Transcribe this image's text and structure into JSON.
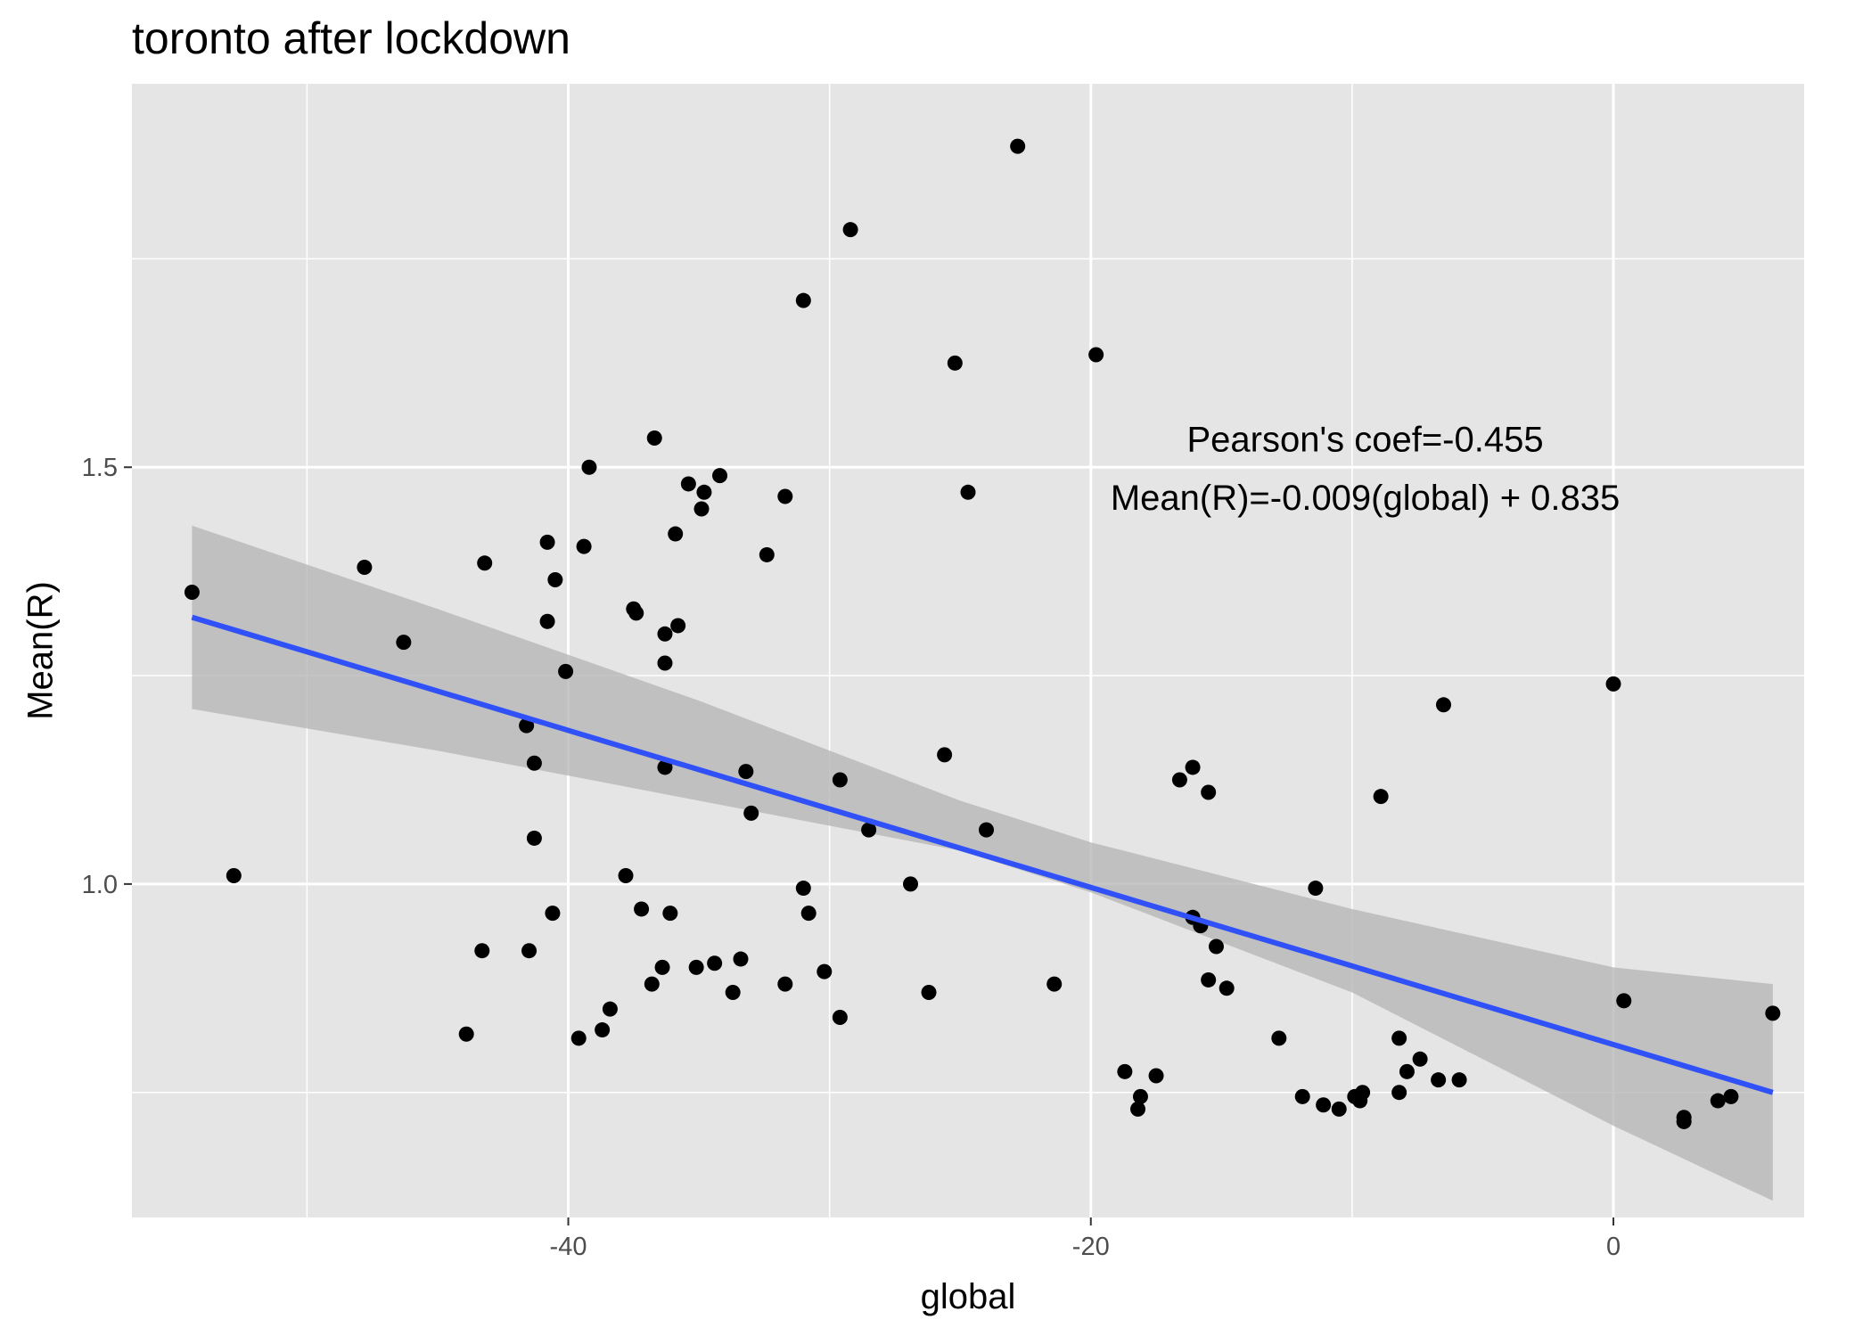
{
  "title": "toronto after lockdown",
  "annotations": [
    {
      "text": "Pearson's coef=-0.455",
      "x": -9.5,
      "y": 1.53
    },
    {
      "text": "Mean(R)=-0.009(global) + 0.835",
      "x": -9.5,
      "y": 1.46
    }
  ],
  "chart_data": {
    "type": "scatter",
    "xlabel": "global",
    "ylabel": "Mean(R)",
    "xlim": [
      -56.7,
      7.3
    ],
    "ylim": [
      0.6,
      1.96
    ],
    "x_ticks": [
      {
        "value": -40,
        "label": "-40"
      },
      {
        "value": -20,
        "label": "-20"
      },
      {
        "value": 0,
        "label": "0"
      }
    ],
    "y_ticks": [
      {
        "value": 1.0,
        "label": "1.0"
      },
      {
        "value": 1.5,
        "label": "1.5"
      }
    ],
    "x_gridlines_minor": [
      -50,
      -30,
      -10
    ],
    "y_gridlines_minor": [
      0.75,
      1.25,
      1.75
    ],
    "grid": true,
    "colors": {
      "panel": "#e5e5e5",
      "grid": "#ffffff",
      "points": "#000000",
      "fit_line": "#3050f8",
      "ribbon": "#b3b3b3"
    },
    "fit": {
      "slope": -0.009,
      "intercept": 0.835,
      "x_range": [
        -54.4,
        6.1
      ]
    },
    "ribbon": [
      {
        "x": -54.4,
        "lo": 1.21,
        "hi": 1.43
      },
      {
        "x": -45,
        "lo": 1.16,
        "hi": 1.33
      },
      {
        "x": -35,
        "lo": 1.1,
        "hi": 1.22
      },
      {
        "x": -25,
        "lo": 1.04,
        "hi": 1.1
      },
      {
        "x": -20,
        "lo": 0.99,
        "hi": 1.05
      },
      {
        "x": -10,
        "lo": 0.87,
        "hi": 0.97
      },
      {
        "x": 0,
        "lo": 0.71,
        "hi": 0.9
      },
      {
        "x": 6.1,
        "lo": 0.62,
        "hi": 0.88
      }
    ],
    "series": [
      {
        "points": [
          {
            "x": -54.4,
            "y": 1.35
          },
          {
            "x": -52.8,
            "y": 1.01
          },
          {
            "x": -47.8,
            "y": 1.38
          },
          {
            "x": -46.3,
            "y": 1.29
          },
          {
            "x": -43.9,
            "y": 0.82
          },
          {
            "x": -43.2,
            "y": 1.385
          },
          {
            "x": -43.3,
            "y": 0.92
          },
          {
            "x": -41.6,
            "y": 1.19
          },
          {
            "x": -41.5,
            "y": 0.92
          },
          {
            "x": -41.3,
            "y": 1.145
          },
          {
            "x": -41.3,
            "y": 1.055
          },
          {
            "x": -40.8,
            "y": 1.41
          },
          {
            "x": -40.8,
            "y": 1.315
          },
          {
            "x": -40.6,
            "y": 0.965
          },
          {
            "x": -40.5,
            "y": 1.365
          },
          {
            "x": -40.1,
            "y": 1.255
          },
          {
            "x": -39.6,
            "y": 0.815
          },
          {
            "x": -39.4,
            "y": 1.405
          },
          {
            "x": -39.2,
            "y": 1.5
          },
          {
            "x": -38.7,
            "y": 0.825
          },
          {
            "x": -38.4,
            "y": 0.85
          },
          {
            "x": -37.8,
            "y": 1.01
          },
          {
            "x": -37.5,
            "y": 1.33
          },
          {
            "x": -37.4,
            "y": 1.325
          },
          {
            "x": -37.2,
            "y": 0.97
          },
          {
            "x": -36.8,
            "y": 0.88
          },
          {
            "x": -36.7,
            "y": 1.535
          },
          {
            "x": -36.4,
            "y": 0.9
          },
          {
            "x": -36.3,
            "y": 1.3
          },
          {
            "x": -36.3,
            "y": 1.265
          },
          {
            "x": -36.3,
            "y": 1.14
          },
          {
            "x": -36.1,
            "y": 0.965
          },
          {
            "x": -35.9,
            "y": 1.42
          },
          {
            "x": -35.8,
            "y": 1.31
          },
          {
            "x": -35.4,
            "y": 1.48
          },
          {
            "x": -35.1,
            "y": 0.9
          },
          {
            "x": -34.9,
            "y": 1.45
          },
          {
            "x": -34.8,
            "y": 1.47
          },
          {
            "x": -34.4,
            "y": 0.905
          },
          {
            "x": -34.2,
            "y": 1.49
          },
          {
            "x": -33.7,
            "y": 0.87
          },
          {
            "x": -33.4,
            "y": 0.91
          },
          {
            "x": -33.2,
            "y": 1.135
          },
          {
            "x": -33.0,
            "y": 1.085
          },
          {
            "x": -32.4,
            "y": 1.395
          },
          {
            "x": -31.7,
            "y": 1.465
          },
          {
            "x": -31.7,
            "y": 0.88
          },
          {
            "x": -31.0,
            "y": 1.7
          },
          {
            "x": -31.0,
            "y": 0.995
          },
          {
            "x": -30.8,
            "y": 0.965
          },
          {
            "x": -30.2,
            "y": 0.895
          },
          {
            "x": -29.6,
            "y": 1.125
          },
          {
            "x": -29.6,
            "y": 0.84
          },
          {
            "x": -29.2,
            "y": 1.785
          },
          {
            "x": -28.5,
            "y": 1.065
          },
          {
            "x": -26.9,
            "y": 1.0
          },
          {
            "x": -26.2,
            "y": 0.87
          },
          {
            "x": -25.6,
            "y": 1.155
          },
          {
            "x": -25.2,
            "y": 1.625
          },
          {
            "x": -24.7,
            "y": 1.47
          },
          {
            "x": -24.0,
            "y": 1.065
          },
          {
            "x": -22.8,
            "y": 1.885
          },
          {
            "x": -21.4,
            "y": 0.88
          },
          {
            "x": -19.8,
            "y": 1.635
          },
          {
            "x": -18.7,
            "y": 0.775
          },
          {
            "x": -18.2,
            "y": 0.73
          },
          {
            "x": -18.1,
            "y": 0.745
          },
          {
            "x": -17.5,
            "y": 0.77
          },
          {
            "x": -16.6,
            "y": 1.125
          },
          {
            "x": -16.1,
            "y": 1.14
          },
          {
            "x": -16.1,
            "y": 0.96
          },
          {
            "x": -15.8,
            "y": 0.95
          },
          {
            "x": -15.5,
            "y": 1.11
          },
          {
            "x": -15.5,
            "y": 0.885
          },
          {
            "x": -15.2,
            "y": 0.925
          },
          {
            "x": -14.8,
            "y": 0.875
          },
          {
            "x": -12.8,
            "y": 0.815
          },
          {
            "x": -11.9,
            "y": 0.745
          },
          {
            "x": -11.4,
            "y": 0.995
          },
          {
            "x": -11.1,
            "y": 0.735
          },
          {
            "x": -10.5,
            "y": 0.73
          },
          {
            "x": -9.9,
            "y": 0.745
          },
          {
            "x": -9.7,
            "y": 0.74
          },
          {
            "x": -9.6,
            "y": 0.75
          },
          {
            "x": -8.9,
            "y": 1.105
          },
          {
            "x": -8.2,
            "y": 0.815
          },
          {
            "x": -8.2,
            "y": 0.75
          },
          {
            "x": -7.9,
            "y": 0.775
          },
          {
            "x": -7.4,
            "y": 0.79
          },
          {
            "x": -6.7,
            "y": 0.765
          },
          {
            "x": -6.5,
            "y": 1.215
          },
          {
            "x": -5.9,
            "y": 0.765
          },
          {
            "x": 0.0,
            "y": 1.24
          },
          {
            "x": 0.4,
            "y": 0.86
          },
          {
            "x": 2.7,
            "y": 0.72
          },
          {
            "x": 2.7,
            "y": 0.715
          },
          {
            "x": 4.0,
            "y": 0.74
          },
          {
            "x": 4.5,
            "y": 0.745
          },
          {
            "x": 6.1,
            "y": 0.845
          }
        ]
      }
    ]
  }
}
